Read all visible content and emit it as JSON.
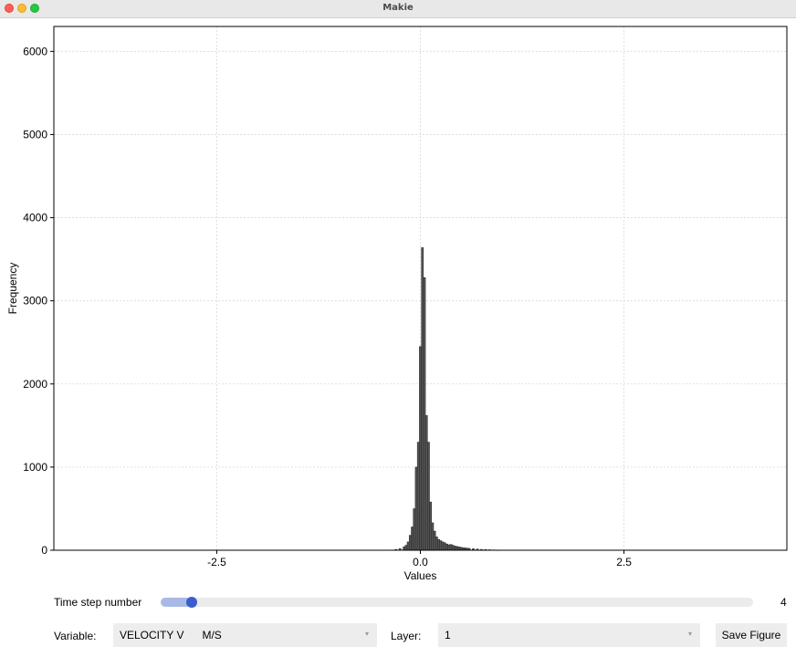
{
  "window": {
    "title": "Makie"
  },
  "chart_data": {
    "type": "bar",
    "title": "",
    "xlabel": "Values",
    "ylabel": "Frequency",
    "xlim": [
      -4.5,
      4.5
    ],
    "ylim": [
      0,
      6300
    ],
    "xticks": [
      -2.5,
      0.0,
      2.5
    ],
    "xtick_labels": [
      "-2.5",
      "0.0",
      "2.5"
    ],
    "yticks": [
      0,
      1000,
      2000,
      3000,
      4000,
      5000,
      6000
    ],
    "ytick_labels": [
      "0",
      "1000",
      "2000",
      "3000",
      "4000",
      "5000",
      "6000"
    ],
    "grid": true,
    "bar_width": 0.025,
    "bar_color": "#555555",
    "x": [
      -0.35,
      -0.3,
      -0.25,
      -0.2,
      -0.175,
      -0.15,
      -0.125,
      -0.1,
      -0.075,
      -0.05,
      -0.025,
      0.0,
      0.025,
      0.05,
      0.075,
      0.1,
      0.125,
      0.15,
      0.175,
      0.2,
      0.225,
      0.25,
      0.275,
      0.3,
      0.325,
      0.35,
      0.375,
      0.4,
      0.425,
      0.45,
      0.475,
      0.5,
      0.525,
      0.55,
      0.575,
      0.6,
      0.65,
      0.7,
      0.75,
      0.8,
      0.85,
      0.9,
      0.95
    ],
    "values": [
      3,
      10,
      20,
      40,
      60,
      100,
      180,
      280,
      500,
      1000,
      1300,
      2450,
      3640,
      3280,
      1620,
      1300,
      580,
      330,
      230,
      160,
      130,
      115,
      100,
      90,
      75,
      65,
      70,
      60,
      50,
      45,
      40,
      35,
      30,
      28,
      25,
      22,
      18,
      14,
      10,
      8,
      6,
      4,
      2
    ]
  },
  "controls": {
    "time_step": {
      "label": "Time step number",
      "value": "4",
      "fraction": 0.025
    },
    "variable": {
      "label": "Variable:",
      "selected": "VELOCITY V      M/S"
    },
    "layer": {
      "label": "Layer:",
      "selected": "1"
    },
    "save_button": {
      "label": "Save Figure"
    },
    "dropdown_arrow": "▾"
  }
}
